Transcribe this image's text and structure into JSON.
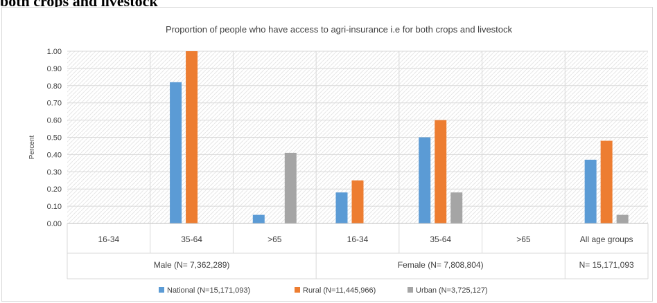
{
  "page": {
    "heading": "both crops and livestock"
  },
  "chart_data": {
    "type": "bar",
    "title": "Proportion of people who have access to agri-insurance i.e for both crops and livestock",
    "ylabel": "Percent",
    "xlabel": "",
    "ylim": [
      0,
      1.0
    ],
    "yticks": [
      "0.00",
      "0.10",
      "0.20",
      "0.30",
      "0.40",
      "0.50",
      "0.60",
      "0.70",
      "0.80",
      "0.90",
      "1.00"
    ],
    "grid": true,
    "legend_position": "bottom",
    "categories": [
      "16-34",
      "35-64",
      ">65",
      "16-34",
      "35-64",
      ">65",
      "All age groups"
    ],
    "groups": [
      {
        "label": "Male (N= 7,362,289)",
        "span": 3
      },
      {
        "label": "Female (N= 7,808,804)",
        "span": 3
      },
      {
        "label": "N= 15,171,093",
        "span": 1
      }
    ],
    "series": [
      {
        "name": "National (N=15,171,093)",
        "color": "#5b9bd5",
        "values": [
          0.0,
          0.82,
          0.05,
          0.18,
          0.5,
          0.0,
          0.37
        ]
      },
      {
        "name": "Rural (N=11,445,966)",
        "color": "#ed7d31",
        "values": [
          0.0,
          1.0,
          0.0,
          0.25,
          0.6,
          0.0,
          0.48
        ]
      },
      {
        "name": "Urban (N=3,725,127)",
        "color": "#a5a5a5",
        "values": [
          0.0,
          0.0,
          0.41,
          0.0,
          0.18,
          0.0,
          0.05
        ]
      }
    ]
  }
}
